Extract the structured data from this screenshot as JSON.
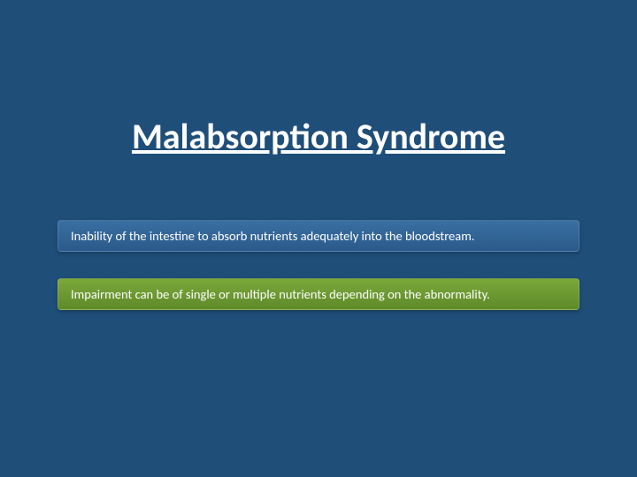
{
  "slide": {
    "background_color": "#1f4e79",
    "title": {
      "text": "Malabsorption Syndrome",
      "color": "#ffffff",
      "fontsize": 40,
      "font_weight": "bold",
      "underline": true
    },
    "bars": [
      {
        "text": "Inability of the intestine to absorb nutrients adequately into the bloodstream.",
        "bg_gradient": [
          "#3a6fa3",
          "#2a5a8a"
        ],
        "text_color": "#ffffff",
        "fontsize": 14.5
      },
      {
        "text": "Impairment can be of single or multiple nutrients depending on the abnormality.",
        "bg_gradient": [
          "#7ba83a",
          "#5e8a2a"
        ],
        "text_color": "#ffffff",
        "fontsize": 14.5
      }
    ]
  }
}
